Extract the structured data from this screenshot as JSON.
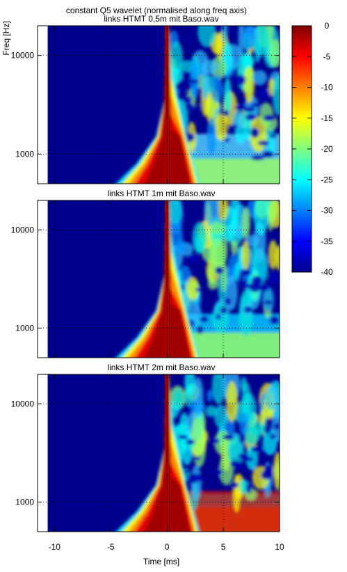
{
  "chart_data": {
    "type": "heatmap",
    "title": "constant Q5 wavelet (normalised along freq axis)",
    "xlabel": "Time [ms]",
    "ylabel": "Freq [Hz]",
    "xlim": [
      -11.5,
      10
    ],
    "ylim": [
      500,
      20000
    ],
    "y_scale": "log",
    "x_ticks": [
      -10,
      -5,
      0,
      5,
      10
    ],
    "y_ticks": [
      1000,
      10000
    ],
    "grid": true,
    "colormap": "jet",
    "colorbar": {
      "range": [
        -40,
        0
      ],
      "ticks": [
        0,
        -5,
        -10,
        -15,
        -20,
        -25,
        -30,
        -35,
        -40
      ]
    },
    "panels": [
      {
        "title": "links HTMT 0,5m mit Baso.wav"
      },
      {
        "title": "links HTMT 1m mit Baso.wav"
      },
      {
        "title": "links HTMT 2m mit Baso.wav"
      }
    ]
  }
}
